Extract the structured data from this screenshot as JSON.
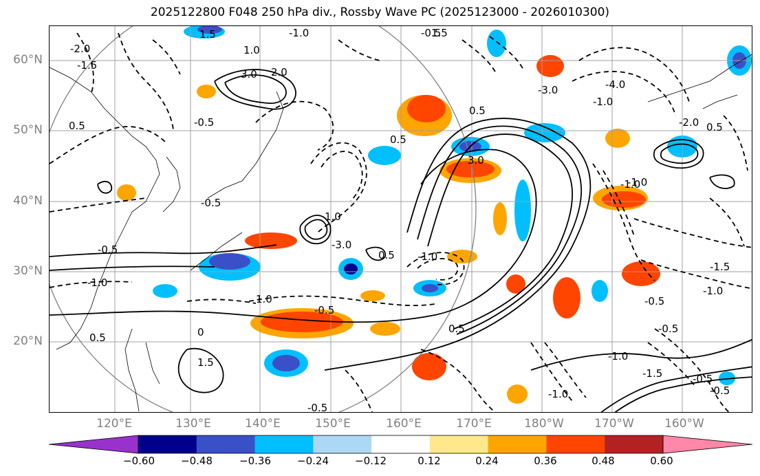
{
  "title": "2025122800 F048 250 hPa div., Rossby Wave PC (2025123000 - 2026010300)",
  "lat_labels": [
    "60°N",
    "50°N",
    "40°N",
    "30°N",
    "20°N"
  ],
  "lon_labels": [
    "120°E",
    "130°E",
    "140°E",
    "150°E",
    "160°E",
    "170°E",
    "180°W",
    "170°W",
    "160°W"
  ],
  "colorbar": {
    "ticks": [
      "−0.60",
      "−0.48",
      "−0.36",
      "−0.24",
      "−0.12",
      "0.12",
      "0.24",
      "0.36",
      "0.48",
      "0.60"
    ],
    "colors": [
      "#9932cc",
      "#00008b",
      "#3a50c8",
      "#00bfff",
      "#add8f5",
      "#ffffff",
      "#ffe88c",
      "#ffa500",
      "#ff4500",
      "#b22222",
      "#ff88aa"
    ]
  },
  "contour_labels": [
    "1.5",
    "-1.0",
    "-2.0",
    "-1.5",
    "1.0",
    "3.0",
    "2.0",
    "-0.5",
    "0.5",
    "-3.0",
    "-4.0",
    "-0.5",
    "-1.0",
    "0.5",
    "-2.0",
    "3.0",
    "-1.0",
    "0.5",
    "-0.5",
    "1.0",
    "-0.5",
    "-1.0",
    "1.0",
    "-0.5",
    "0.5",
    "1.5",
    "0",
    "-1.0",
    "-0.5",
    "-3.0",
    "0.5",
    "-1.0",
    "0.5",
    "-0.5",
    "-1.5",
    "-1.0",
    "-1.0",
    "-0.5",
    "-1.5",
    "0.5",
    "-0.5",
    "-1.0",
    "-0.5",
    "1.5"
  ]
}
